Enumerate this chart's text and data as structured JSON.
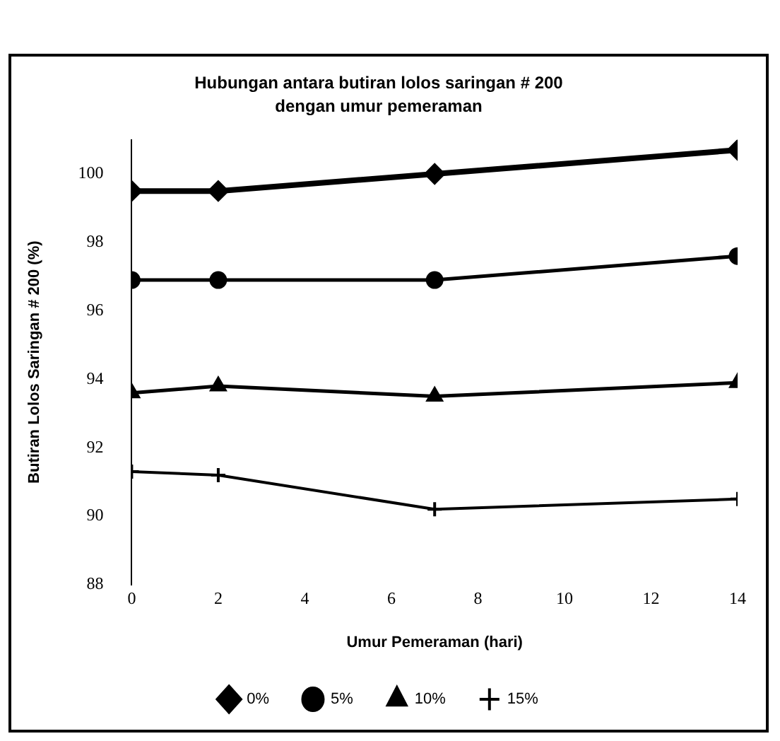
{
  "chart_data": {
    "type": "line",
    "title": "Hubungan antara butiran lolos saringan # 200",
    "subtitle": "dengan umur pemeraman",
    "xlabel": "Umur Pemeraman (hari)",
    "ylabel": "Butiran Lolos Saringan # 200 (%)",
    "x": [
      0,
      2,
      7,
      14
    ],
    "series": [
      {
        "name": "0%",
        "color": "#000000",
        "marker": "diamond",
        "values": [
          99.5,
          99.5,
          100.0,
          100.7
        ]
      },
      {
        "name": "5%",
        "color": "#000000",
        "marker": "circle",
        "values": [
          96.9,
          96.9,
          96.9,
          97.6
        ]
      },
      {
        "name": "10%",
        "color": "#000000",
        "marker": "triangle",
        "values": [
          93.6,
          93.8,
          93.5,
          93.9
        ]
      },
      {
        "name": "15%",
        "color": "#000000",
        "marker": "cross",
        "values": [
          91.3,
          91.2,
          90.2,
          90.5
        ]
      }
    ],
    "xlim": [
      0,
      14
    ],
    "xticks": [
      0,
      2,
      4,
      6,
      8,
      10,
      12,
      14
    ],
    "ylim": [
      88,
      101
    ],
    "yticks": [
      88,
      90,
      92,
      94,
      96,
      98,
      100
    ],
    "grid": false,
    "legend": "bottom",
    "line_style": "solid"
  }
}
